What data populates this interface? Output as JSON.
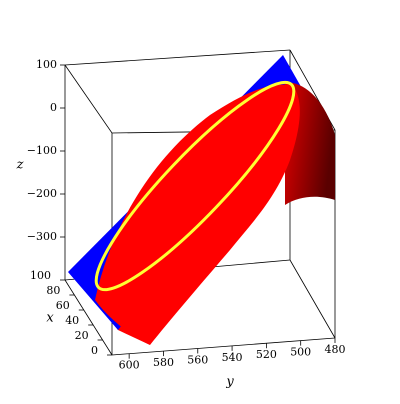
{
  "chart_data": {
    "type": "surface3d",
    "xlabel": "x",
    "ylabel": "y",
    "zlabel": "z",
    "xlim": [
      0,
      100
    ],
    "xticks": [
      0,
      20,
      40,
      60,
      80,
      100
    ],
    "ylim": [
      610,
      480
    ],
    "yticks": [
      600,
      580,
      560,
      540,
      520,
      500,
      480
    ],
    "zlim": [
      -400,
      100
    ],
    "zticks": [
      100,
      0,
      {
        "value": -100,
        "label": "−100"
      },
      {
        "value": -200,
        "label": "−200"
      },
      {
        "value": -300,
        "label": "−300"
      }
    ]
  }
}
